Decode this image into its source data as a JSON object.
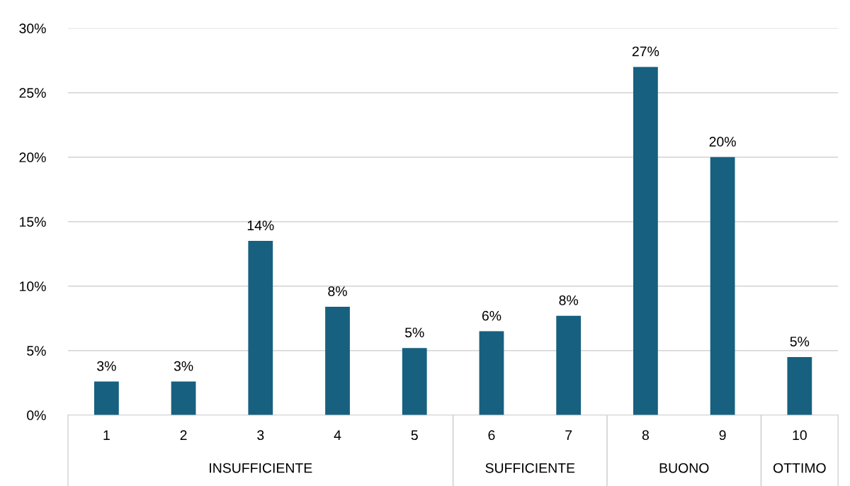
{
  "chart_data": {
    "type": "bar",
    "categories": [
      "1",
      "2",
      "3",
      "4",
      "5",
      "6",
      "7",
      "8",
      "9",
      "10"
    ],
    "values": [
      2.6,
      2.6,
      13.5,
      8.4,
      5.2,
      6.5,
      7.7,
      27.0,
      20.0,
      4.5
    ],
    "value_labels": [
      "3%",
      "3%",
      "14%",
      "8%",
      "5%",
      "6%",
      "8%",
      "27%",
      "20%",
      "5%"
    ],
    "color": "#17607f",
    "ylim": [
      0,
      30
    ],
    "yticks": [
      {
        "value": 0,
        "label": "0%"
      },
      {
        "value": 5,
        "label": "5%"
      },
      {
        "value": 10,
        "label": "10%"
      },
      {
        "value": 15,
        "label": "15%"
      },
      {
        "value": 20,
        "label": "20%"
      },
      {
        "value": 25,
        "label": "25%"
      },
      {
        "value": 30,
        "label": "30%"
      }
    ],
    "grid": "y",
    "annotations": [
      "INSUFFICIENTE",
      "SUFFICIENTE",
      "BUONO",
      "OTTIMO"
    ]
  }
}
